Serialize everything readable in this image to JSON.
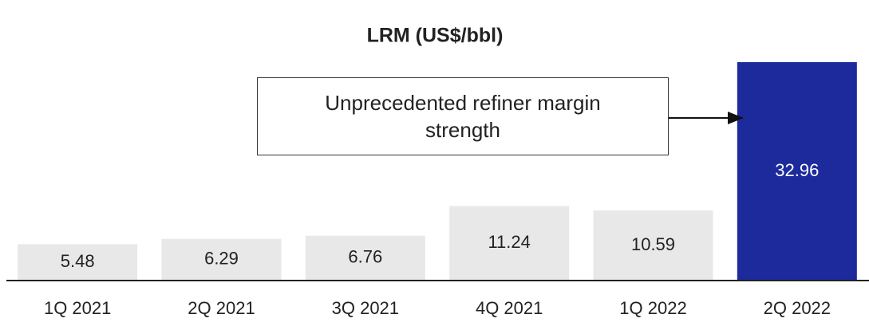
{
  "chart_data": {
    "type": "bar",
    "title": "LRM (US$/bbl)",
    "categories": [
      "1Q 2021",
      "2Q 2021",
      "3Q 2021",
      "4Q 2021",
      "1Q 2022",
      "2Q 2022"
    ],
    "values": [
      5.48,
      6.29,
      6.76,
      11.24,
      10.59,
      32.96
    ],
    "colors": [
      "#e8e8e8",
      "#e8e8e8",
      "#e8e8e8",
      "#e8e8e8",
      "#e8e8e8",
      "#1c2a9c"
    ],
    "annotation": "Unprecedented refiner margin strength"
  }
}
